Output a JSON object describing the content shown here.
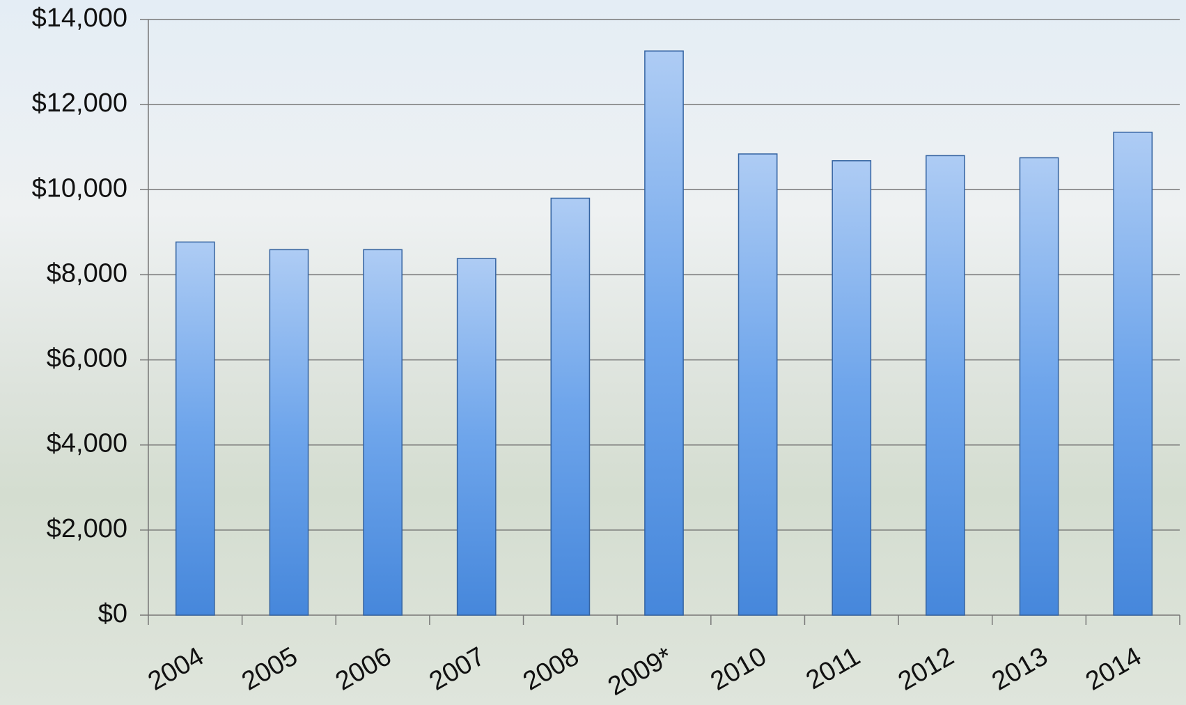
{
  "chart_data": {
    "type": "bar",
    "categories": [
      "2004",
      "2005",
      "2006",
      "2007",
      "2008",
      "2009*",
      "2010",
      "2011",
      "2012",
      "2013",
      "2014"
    ],
    "values": [
      8770,
      8590,
      8590,
      8380,
      9800,
      13260,
      10840,
      10680,
      10800,
      10750,
      11350
    ],
    "color": "#4a8ee6",
    "ylim": [
      0,
      14000
    ],
    "yticks": [
      {
        "value": 0,
        "label": "$0"
      },
      {
        "value": 2000,
        "label": "$2,000"
      },
      {
        "value": 4000,
        "label": "$4,000"
      },
      {
        "value": 6000,
        "label": "$6,000"
      },
      {
        "value": 8000,
        "label": "$8,000"
      },
      {
        "value": 10000,
        "label": "$10,000"
      },
      {
        "value": 12000,
        "label": "$12,000"
      },
      {
        "value": 14000,
        "label": "$14,000"
      }
    ],
    "grid": true
  }
}
